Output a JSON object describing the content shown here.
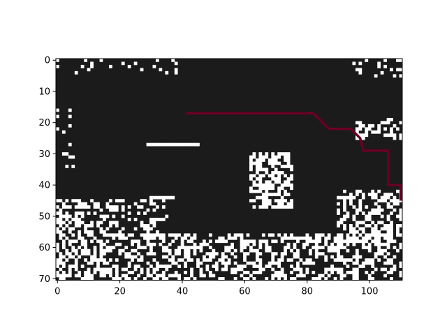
{
  "chart_data": {
    "type": "heatmap",
    "title": "",
    "xlabel": "",
    "ylabel": "",
    "grid": false,
    "xlim": [
      0,
      111
    ],
    "ylim": [
      71,
      0
    ],
    "x_ticks": [
      0,
      20,
      40,
      60,
      80,
      100
    ],
    "y_ticks": [
      0,
      10,
      20,
      30,
      40,
      50,
      60,
      70
    ],
    "colors": {
      "background": "#1b1b1b",
      "cells": "#ffffff",
      "path": "#6a0022"
    },
    "path": {
      "name": "",
      "x": [
        41,
        82,
        83,
        84,
        85,
        86,
        87,
        88,
        89,
        90,
        91,
        92,
        93,
        94,
        95,
        96,
        97,
        98,
        99,
        100,
        101,
        102,
        103,
        104,
        105,
        106,
        106,
        106,
        106,
        106,
        106,
        106,
        106,
        106,
        106,
        106,
        106,
        107,
        108,
        109,
        110,
        110,
        110,
        110,
        110,
        110
      ],
      "y": [
        17,
        17,
        18,
        19,
        20,
        21,
        22,
        22,
        22,
        22,
        22,
        22,
        22,
        22,
        23,
        24,
        25,
        29,
        29,
        29,
        29,
        29,
        29,
        29,
        29,
        29,
        30,
        31,
        32,
        33,
        34,
        35,
        36,
        37,
        38,
        39,
        40,
        40,
        40,
        40,
        40,
        41,
        42,
        43,
        44,
        45
      ]
    },
    "white_regions": [
      {
        "name": "top-left speckles",
        "x": [
          0,
          40
        ],
        "y": [
          0,
          5
        ],
        "density": 0.1
      },
      {
        "name": "top-right speckles",
        "x": [
          95,
          111
        ],
        "y": [
          0,
          6
        ],
        "density": 0.25
      },
      {
        "name": "left edge speckles",
        "x": [
          0,
          6
        ],
        "y": [
          15,
          35
        ],
        "density": 0.12
      },
      {
        "name": "center blob",
        "x": [
          62,
          76
        ],
        "y": [
          30,
          48
        ],
        "density": 0.55
      },
      {
        "name": "upper-right blob",
        "x": [
          96,
          111
        ],
        "y": [
          19,
          26
        ],
        "density": 0.45
      },
      {
        "name": "lower-left dense",
        "x": [
          0,
          18
        ],
        "y": [
          45,
          71
        ],
        "density": 0.5
      },
      {
        "name": "bottom strip",
        "x": [
          18,
          111
        ],
        "y": [
          56,
          71
        ],
        "density": 0.42
      },
      {
        "name": "right middle",
        "x": [
          90,
          111
        ],
        "y": [
          42,
          60
        ],
        "density": 0.4
      },
      {
        "name": "middle lower",
        "x": [
          18,
          36
        ],
        "y": [
          45,
          58
        ],
        "density": 0.3
      }
    ],
    "white_lines": [
      {
        "x": [
          29,
          45
        ],
        "y": 27
      },
      {
        "x": [
          30,
          37
        ],
        "y": 44
      },
      {
        "x": [
          72,
          80
        ],
        "y": 57
      }
    ]
  }
}
